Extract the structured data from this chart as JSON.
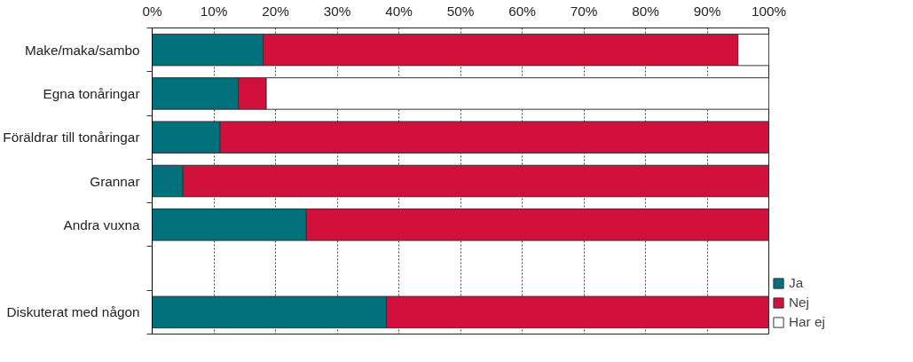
{
  "chart_data": {
    "type": "bar",
    "orientation": "horizontal",
    "stacked": true,
    "categories": [
      "Make/maka/sambo",
      "Egna tonåringar",
      "Föräldrar till tonåringar",
      "Grannar",
      "Andra vuxna",
      null,
      "Diskuterat med någon"
    ],
    "series": [
      {
        "name": "Ja",
        "color": "#00707a",
        "values": [
          18,
          14,
          11,
          5,
          25,
          null,
          38
        ]
      },
      {
        "name": "Nej",
        "color": "#d2103c",
        "values": [
          77,
          4.5,
          89,
          95,
          75,
          null,
          62
        ]
      },
      {
        "name": "Har ej",
        "color": "#ffffff",
        "values": [
          5,
          81.5,
          null,
          null,
          null,
          null,
          null
        ]
      }
    ],
    "xlim": [
      0,
      100
    ],
    "xticks": [
      {
        "value": 0,
        "label": "0%"
      },
      {
        "value": 10,
        "label": "10%"
      },
      {
        "value": 20,
        "label": "20%"
      },
      {
        "value": 30,
        "label": "30%"
      },
      {
        "value": 40,
        "label": "40%"
      },
      {
        "value": 50,
        "label": "50%"
      },
      {
        "value": 60,
        "label": "60%"
      },
      {
        "value": 70,
        "label": "70%"
      },
      {
        "value": 80,
        "label": "80%"
      },
      {
        "value": 90,
        "label": "90%"
      },
      {
        "value": 100,
        "label": "100%"
      }
    ],
    "grid": "x",
    "legend": "bottom right"
  }
}
